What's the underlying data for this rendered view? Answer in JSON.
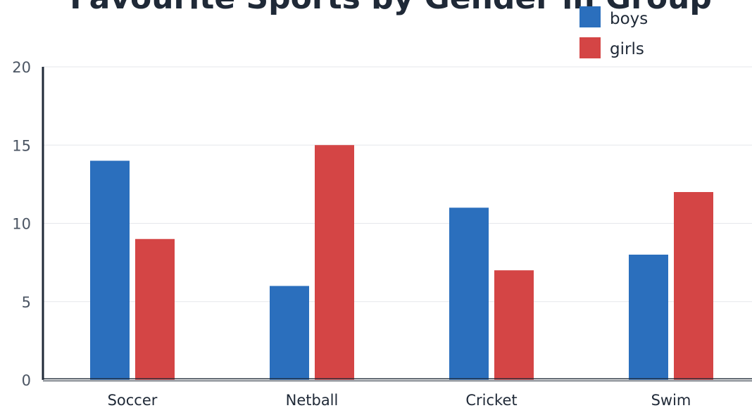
{
  "chart_data": {
    "type": "bar",
    "title": "Favourite Sports by Gender in Group",
    "categories": [
      "Soccer",
      "Netball",
      "Cricket",
      "Swim"
    ],
    "series": [
      {
        "name": "boys",
        "values": [
          14,
          6,
          11,
          8
        ]
      },
      {
        "name": "girls",
        "values": [
          9,
          15,
          7,
          12
        ]
      }
    ],
    "ylim": [
      0,
      20
    ],
    "yticks": [
      "0",
      "5",
      "10",
      "15",
      "20"
    ],
    "xlabel": "",
    "ylabel": "",
    "grid": true,
    "legend_position": "top-right"
  },
  "colors": {
    "boys": "#2b6fbd",
    "girls": "#d44545",
    "axis": "#1f2937"
  }
}
